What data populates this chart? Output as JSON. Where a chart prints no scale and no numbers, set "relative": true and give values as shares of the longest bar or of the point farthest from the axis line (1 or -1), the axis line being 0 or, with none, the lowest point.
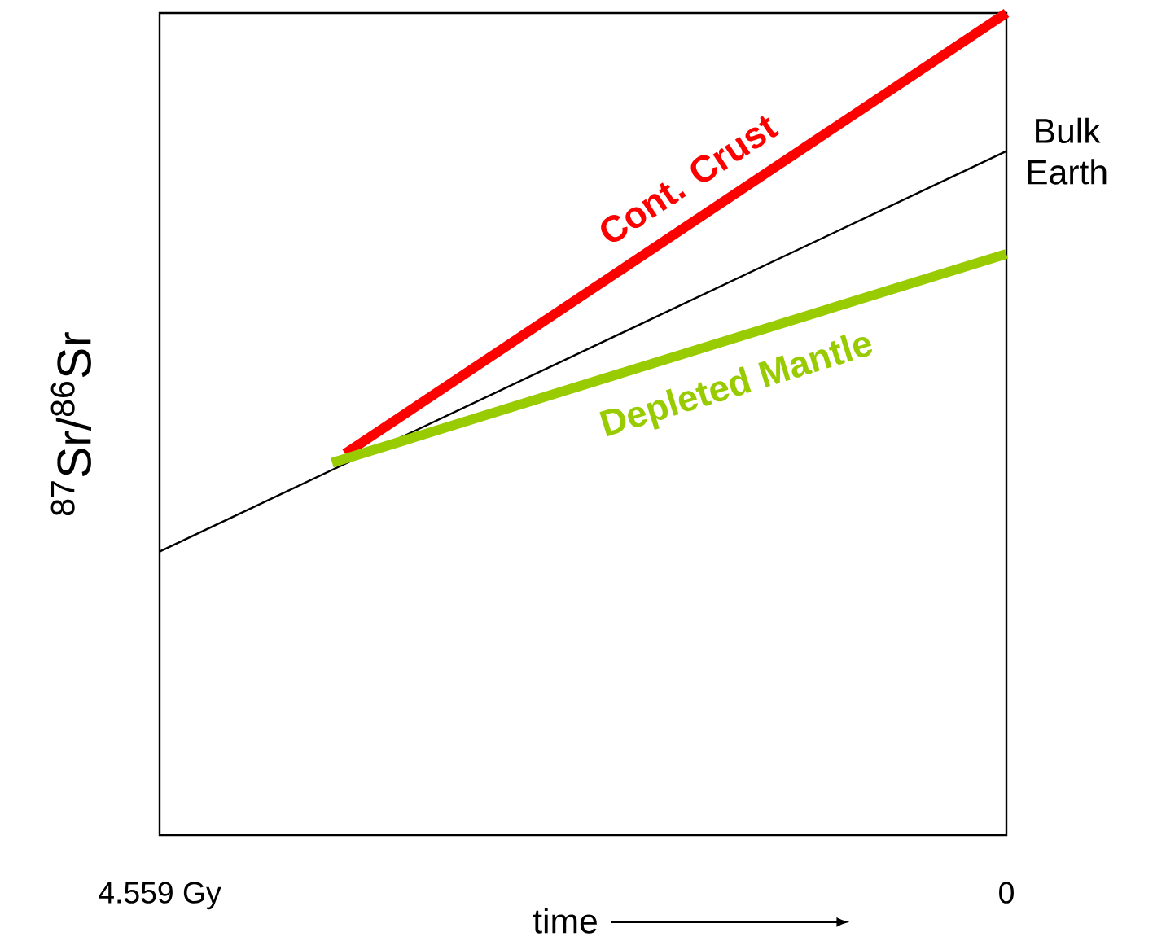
{
  "chart_data": {
    "type": "line",
    "relative": true,
    "xlabel": "time",
    "ylabel": "$^{87}$Sr/$^{86}$Sr",
    "xlim": [
      4.559,
      0
    ],
    "xticks": [
      {
        "value": 4.559,
        "label": "4.559 Gy"
      },
      {
        "value": 0,
        "label": "0"
      }
    ],
    "series": [
      {
        "name": "Bulk Earth",
        "color": "#000000",
        "x": [
          4.559,
          0
        ],
        "values": [
          0.345,
          0.832
        ]
      },
      {
        "name": "Cont. Crust",
        "color": "#ff0000",
        "x": [
          3.56,
          0
        ],
        "values": [
          0.464,
          1
        ]
      },
      {
        "name": "Depleted Mantle",
        "color": "#99cc00",
        "x": [
          3.63,
          0
        ],
        "values": [
          0.453,
          0.707
        ]
      }
    ]
  }
}
